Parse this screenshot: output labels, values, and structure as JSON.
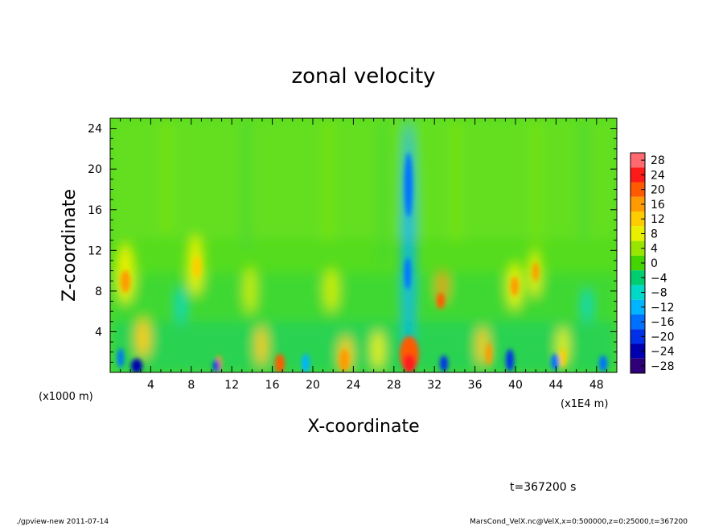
{
  "chart_data": {
    "type": "heatmap",
    "title": "zonal velocity",
    "xlabel": "X-coordinate",
    "ylabel": "Z-coordinate",
    "xlim": [
      0,
      50
    ],
    "ylim": [
      0,
      25
    ],
    "x_ticks": [
      "4",
      "8",
      "12",
      "16",
      "20",
      "24",
      "28",
      "32",
      "36",
      "40",
      "44",
      "48"
    ],
    "y_ticks": [
      "4",
      "8",
      "12",
      "16",
      "20",
      "24"
    ],
    "x_unit": "(x1E4 m)",
    "y_unit": "(x1000 m)",
    "colorbar": {
      "levels": [
        "28",
        "24",
        "20",
        "16",
        "12",
        "8",
        "4",
        "0",
        "−4",
        "−8",
        "−12",
        "−16",
        "−20",
        "−24",
        "−28"
      ],
      "colors": [
        "#ff6a70",
        "#ff1a1a",
        "#ff5a00",
        "#ff9a00",
        "#ffcc00",
        "#e8f000",
        "#98e600",
        "#44d400",
        "#00cc70",
        "#00d8c8",
        "#00b4ff",
        "#0070ff",
        "#0030e8",
        "#0000b0",
        "#300078"
      ]
    },
    "features": [
      {
        "x": 29.6,
        "z": 1.2,
        "value": 18
      },
      {
        "x": 17,
        "z": 0.6,
        "value": 14
      },
      {
        "x": 23.5,
        "z": 1.0,
        "value": 12
      },
      {
        "x": 32.7,
        "z": 7.2,
        "value": 15
      },
      {
        "x": 1.6,
        "z": 9,
        "value": 13
      },
      {
        "x": 8.4,
        "z": 10,
        "value": 10
      },
      {
        "x": 40,
        "z": 9,
        "value": 10
      },
      {
        "x": 42,
        "z": 10.5,
        "value": 10
      },
      {
        "x": 2.5,
        "z": 0.5,
        "value": -22
      },
      {
        "x": 10.5,
        "z": 0.6,
        "value": -14
      },
      {
        "x": 30,
        "z": 16,
        "value": -12
      },
      {
        "x": 33.5,
        "z": 1.0,
        "value": -12
      },
      {
        "x": 39.5,
        "z": 1.2,
        "value": -14
      }
    ]
  },
  "annotations": {
    "time": "t=367200 s",
    "footer_left": "./gpview-new   2011-07-14",
    "footer_right": "MarsCond_VelX.nc@VelX,x=0:500000,z=0:25000,t=367200"
  }
}
